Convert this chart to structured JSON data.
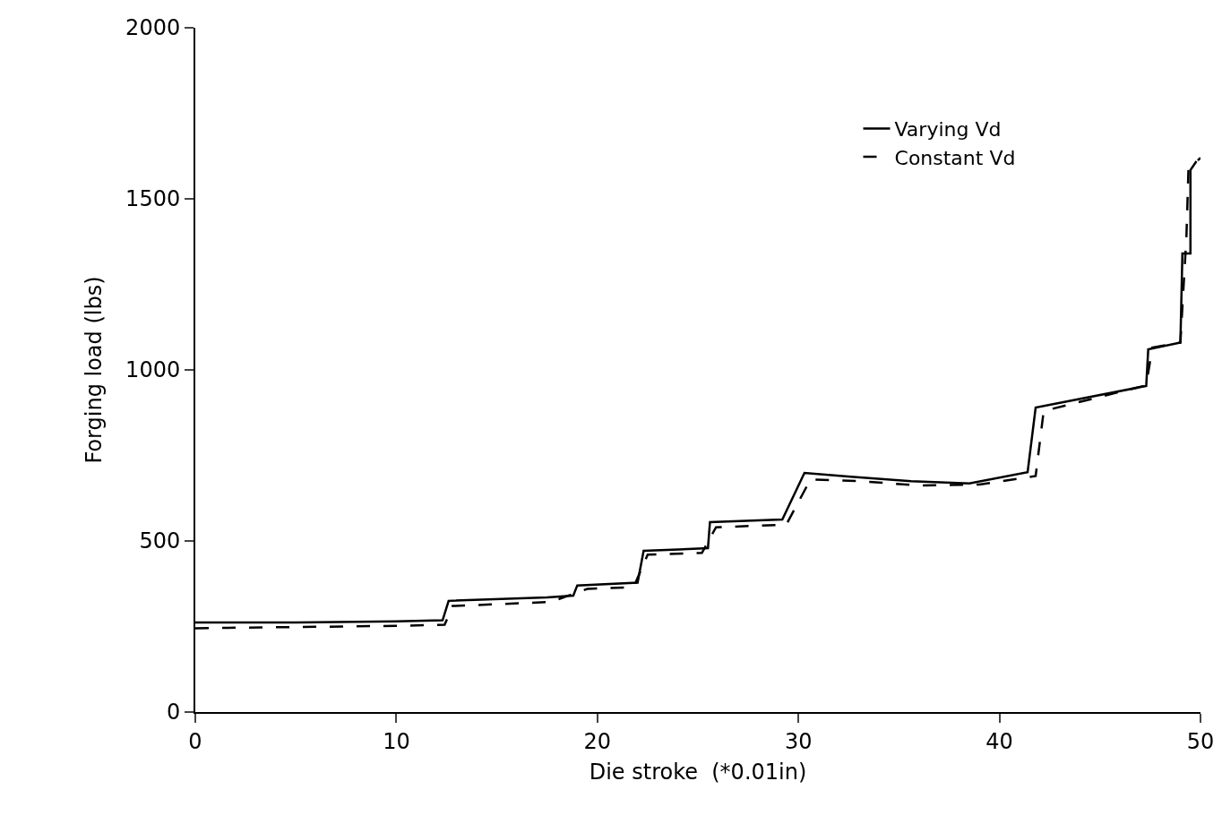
{
  "chart_data": {
    "type": "line",
    "xlabel": "Die stroke  (*0.01in)",
    "ylabel": "Forging load (lbs)",
    "xlim": [
      0,
      50
    ],
    "xticks": [
      0,
      10,
      20,
      30,
      40,
      50
    ],
    "ylim": [
      0,
      2000
    ],
    "yticks": [
      0,
      500,
      1000,
      1500,
      2000
    ],
    "grid": false,
    "legend": "top right",
    "marker": "none",
    "series": [
      {
        "name": "Varying Vd",
        "color": "#000000",
        "line_style": "solid",
        "x": [
          0,
          5,
          10,
          12.3,
          12.6,
          17.5,
          18.8,
          19.0,
          22.0,
          22.3,
          25.5,
          25.6,
          29.2,
          30.3,
          32.6,
          35.6,
          38.5,
          41.4,
          41.8,
          47.3,
          47.4,
          49.0,
          49.1,
          49.5,
          49.5,
          49.8
        ],
        "values": [
          262,
          262,
          265,
          268,
          325,
          335,
          340,
          370,
          378,
          471,
          479,
          555,
          563,
          699,
          688,
          675,
          668,
          701,
          890,
          953,
          1060,
          1080,
          1340,
          1340,
          1584,
          1610
        ]
      },
      {
        "name": "Constant Vd",
        "color": "#000000",
        "line_style": "dashed",
        "x": [
          0,
          10,
          12.4,
          12.8,
          17.7,
          19.5,
          21.8,
          22.5,
          25.2,
          25.9,
          29.4,
          30.6,
          33,
          36,
          39,
          41.8,
          42.2,
          47.3,
          47.6,
          49.0,
          49.3,
          49.4,
          50
        ],
        "values": [
          245,
          252,
          255,
          310,
          322,
          360,
          365,
          460,
          465,
          540,
          548,
          680,
          675,
          662,
          665,
          690,
          880,
          955,
          1065,
          1080,
          1390,
          1585,
          1620
        ]
      }
    ]
  }
}
